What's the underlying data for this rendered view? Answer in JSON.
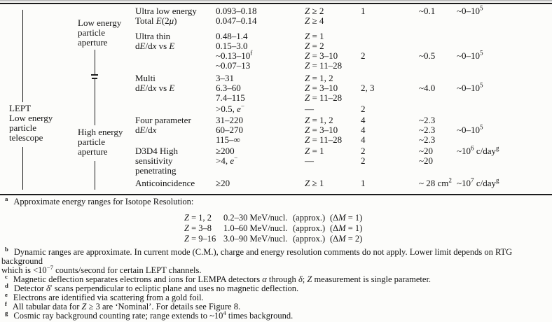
{
  "table": {
    "instrument": {
      "lines": [
        "LEPT",
        "Low energy",
        "particle",
        "telescope"
      ]
    },
    "apertures": [
      {
        "lines": [
          "Low energy",
          "particle",
          "aperture"
        ]
      },
      {
        "lines": [
          "High energy",
          "particle",
          "aperture"
        ]
      }
    ],
    "rows": [
      {
        "det": "Ultra low energy",
        "rng": "0.093–0.18",
        "z": "*Z* ≥ 2",
        "par": "1",
        "geo": "~0.1",
        "dyn": "~0–10^{5}"
      },
      {
        "det": "Total *E*(2*μ*)",
        "rng": "0.047–0.14",
        "z": "*Z* ≥ 4",
        "par": "",
        "geo": "",
        "dyn": ""
      },
      {
        "det": "Ultra thin",
        "rng": "0.48–1.4",
        "z": "*Z* = 1",
        "par": "",
        "geo": "",
        "dyn": ""
      },
      {
        "det": "d*E*/d*x* vs *E*",
        "rng": "0.15–3.0",
        "z": "*Z* = 2",
        "par": "",
        "geo": "",
        "dyn": ""
      },
      {
        "det": "",
        "rng": "~0.13–10^{f}",
        "z": "*Z* = 3–10",
        "par": "2",
        "geo": "~0.5",
        "dyn": "~0–10^{5}"
      },
      {
        "det": "",
        "rng": "~0.07–13",
        "z": "*Z* = 11–28",
        "par": "",
        "geo": "",
        "dyn": ""
      },
      {
        "det": "Multi",
        "rng": "3–31",
        "z": "*Z* = 1, 2",
        "par": "",
        "geo": "",
        "dyn": ""
      },
      {
        "det": "d*E*/d*x* vs *E*",
        "rng": "6.3–60",
        "z": "*Z* = 3–10",
        "par": "2, 3",
        "geo": "~4.0",
        "dyn": "~0–10^{5}"
      },
      {
        "det": "",
        "rng": "7.4–115",
        "z": "*Z* = 11–28",
        "par": "",
        "geo": "",
        "dyn": ""
      },
      {
        "det": "",
        "rng": ">0.5, *e*^{−}",
        "z": "—",
        "par": "2",
        "geo": "",
        "dyn": ""
      },
      {
        "det": "Four parameter",
        "rng": "31–220",
        "z": "*Z* = 1, 2",
        "par": "4",
        "geo": "~2.3",
        "dyn": ""
      },
      {
        "det": "d*E*/d*x*",
        "rng": "60–270",
        "z": "*Z* = 3–10",
        "par": "4",
        "geo": "~2.3",
        "dyn": "~0–10^{5}"
      },
      {
        "det": "",
        "rng": "115–∞",
        "z": "*Z* = 11–28",
        "par": "4",
        "geo": "~2.3",
        "dyn": ""
      },
      {
        "det": "D3D4 High",
        "rng": "≥200",
        "z": "*Z* = 1",
        "par": "2",
        "geo": "~20",
        "dyn": "~10^{6} c/day^{g}"
      },
      {
        "det": "sensitivity",
        "rng": ">4, *e*^{−}",
        "z": "—",
        "par": "2",
        "geo": "~20",
        "dyn": ""
      },
      {
        "det": "penetrating",
        "rng": "",
        "z": "",
        "par": "",
        "geo": "",
        "dyn": ""
      },
      {
        "det": "Anticoincidence",
        "rng": "≥20",
        "z": "*Z* ≥ 1",
        "par": "1",
        "geo": "~ 28 cm^{2}",
        "dyn": "~10^{7} c/day^{g}"
      }
    ]
  },
  "footnotes": {
    "a": {
      "marker": "a",
      "text": "Approximate energy ranges for Isotope Resolution:",
      "subtable": [
        {
          "z": "*Z* = 1, 2",
          "range": "0.2–30 MeV/nucl.",
          "approx": "(approx.)",
          "dm": "(Δ*M* = 1)"
        },
        {
          "z": "*Z* = 3–8",
          "range": "1.0–60 MeV/nucl.",
          "approx": "(approx.)",
          "dm": "(Δ*M* = 1)"
        },
        {
          "z": "*Z* = 9–16",
          "range": "3.0–90 MeV/nucl.",
          "approx": "(approx.)",
          "dm": "(Δ*M* = 2)"
        }
      ]
    },
    "b": {
      "marker": "b",
      "text": "Dynamic ranges are approximate. In current mode (C.M.), charge and energy resolution comments do not apply. Lower limit depends on RTG background\nwhich is <10^{−7} counts/second for certain LEPT channels."
    },
    "c": {
      "marker": "c",
      "text": "Magnetic deflection separates electrons and ions for LEMPA detectors *α* through *δ*; *Z* measurement is single parameter."
    },
    "d": {
      "marker": "d",
      "text": "Detector *δ*′ scans perpendicular to ecliptic plane and uses no magnetic deflection."
    },
    "e": {
      "marker": "e",
      "text": "Electrons are identified via scattering from a gold foil."
    },
    "f": {
      "marker": "f",
      "text": "All tabular data for *Z* ≥ 3 are ‘Nominal’. For details see Figure 8."
    },
    "g": {
      "marker": "g",
      "text": "Cosmic ray background counting rate; range extends to ~10^{4} times background."
    }
  }
}
